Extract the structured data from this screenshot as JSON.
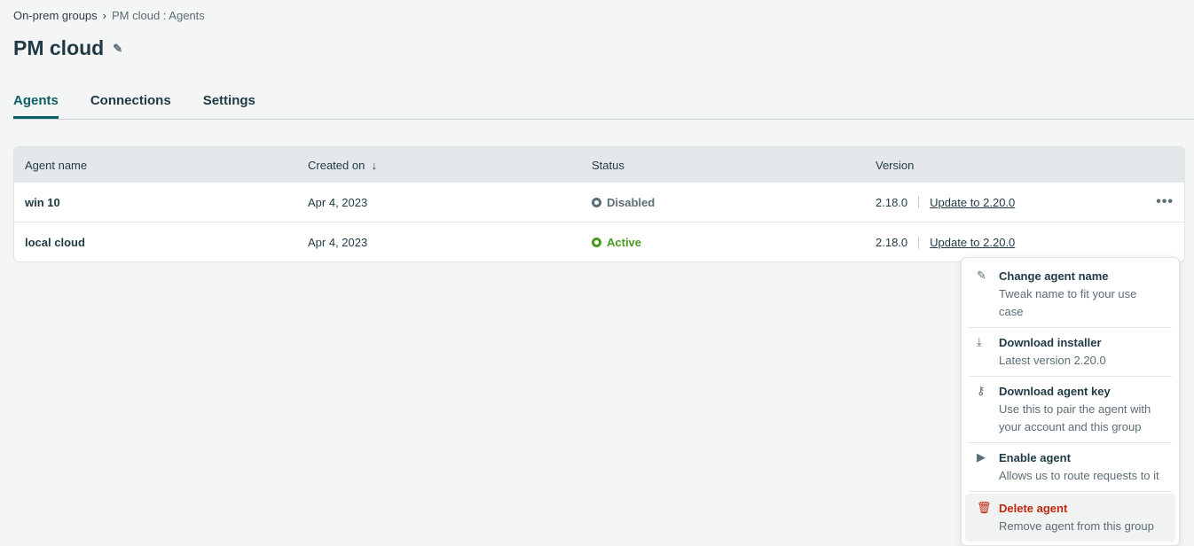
{
  "breadcrumb": {
    "parent": "On-prem groups",
    "separator": "›",
    "current": "PM cloud : Agents"
  },
  "page": {
    "title": "PM cloud"
  },
  "tabs": [
    {
      "label": "Agents",
      "active": true
    },
    {
      "label": "Connections"
    },
    {
      "label": "Settings"
    }
  ],
  "table": {
    "headers": {
      "name": "Agent name",
      "created": "Created on",
      "sort_icon": "↓",
      "status": "Status",
      "version": "Version"
    },
    "rows": [
      {
        "name": "win 10",
        "created": "Apr 4, 2023",
        "status": "Disabled",
        "version": "2.18.0",
        "update": "Update to 2.20.0"
      },
      {
        "name": "local cloud",
        "created": "Apr 4, 2023",
        "status": "Active",
        "version": "2.18.0",
        "update": "Update to 2.20.0"
      }
    ],
    "more": "•••"
  },
  "menu": [
    {
      "icon": "✎",
      "title": "Change agent name",
      "desc": "Tweak name to fit your use case"
    },
    {
      "icon": "⤓",
      "title": "Download installer",
      "desc": "Latest version 2.20.0"
    },
    {
      "icon": "⚷",
      "title": "Download agent key",
      "desc": "Use this to pair the agent with your account and this group"
    },
    {
      "icon": "▶",
      "title": "Enable agent",
      "desc": "Allows us to route requests to it"
    },
    {
      "icon": "🗑",
      "title": "Delete agent",
      "desc": "Remove agent from this group"
    }
  ],
  "colors": {
    "accent": "#0e5f63",
    "active": "#4a9a1f",
    "danger": "#c0260f"
  }
}
